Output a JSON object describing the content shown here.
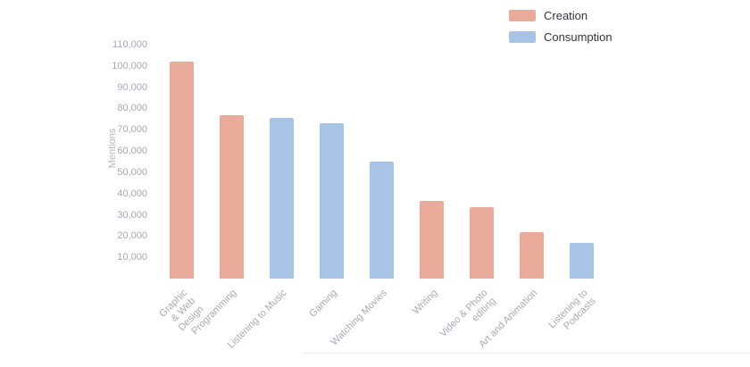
{
  "chart_data": {
    "type": "bar",
    "title": "",
    "xlabel": "",
    "ylabel": "Mentions",
    "ylim": [
      0,
      110000
    ],
    "ytick_step": 10000,
    "yticks": [
      10000,
      20000,
      30000,
      40000,
      50000,
      60000,
      70000,
      80000,
      90000,
      100000,
      110000
    ],
    "grid": false,
    "legend_position": "top-right",
    "categories": [
      "Graphic & Web Design",
      "Programming",
      "Listening to Music",
      "Gaming",
      "Watching Movies",
      "Writing",
      "Video & Photo editing",
      "Art and Animation",
      "Listening to Podcasts"
    ],
    "values": [
      102000,
      77000,
      75500,
      73000,
      55000,
      36500,
      33500,
      22000,
      17000
    ],
    "bar_series": [
      "Creation",
      "Creation",
      "Consumption",
      "Consumption",
      "Consumption",
      "Creation",
      "Creation",
      "Creation",
      "Consumption"
    ],
    "legend": {
      "items": [
        {
          "name": "Creation",
          "color": "#eaab9a"
        },
        {
          "name": "Consumption",
          "color": "#a7c4e6"
        }
      ]
    },
    "text_color": "#a8a8b0"
  }
}
